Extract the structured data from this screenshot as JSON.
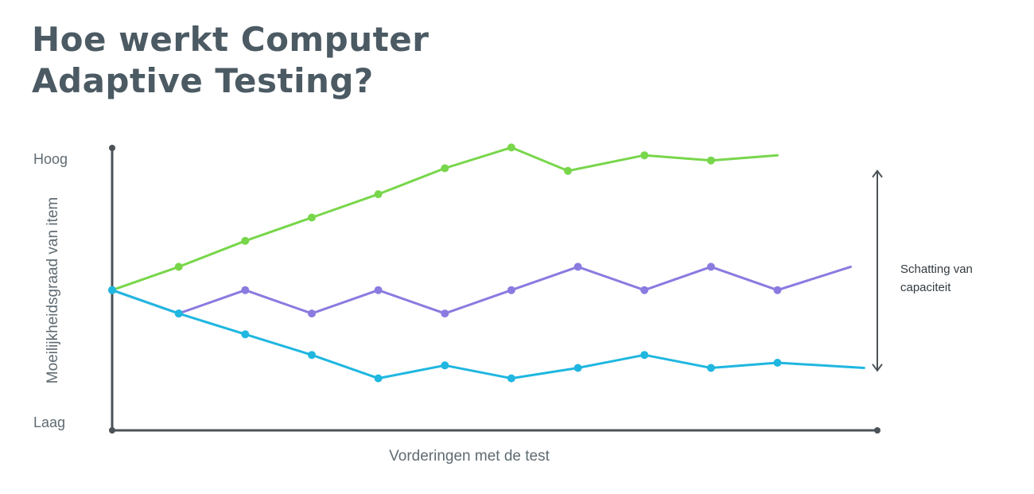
{
  "title": {
    "line1": "Hoe werkt Computer",
    "line2": "Adaptive Testing?"
  },
  "chart_data": {
    "type": "line",
    "title": "Hoe werkt Computer Adaptive Testing?",
    "xlabel": "Vorderingen met de test",
    "ylabel": "Moeilijkheidsgraad van item",
    "ytick_high": "Hoog",
    "ytick_low": "Laag",
    "xlim": [
      0,
      11.5
    ],
    "ylim": [
      0,
      1
    ],
    "grid": false,
    "legend": "none",
    "annotation": {
      "text_line1": "Schatting van",
      "text_line2": "capaciteit",
      "range": [
        0.2,
        0.97
      ],
      "x": 11.5
    },
    "series": [
      {
        "color": "#78d64b",
        "x": [
          0,
          1,
          2,
          3,
          4,
          5,
          6,
          6.85,
          8,
          9,
          10
        ],
        "y": [
          0.51,
          0.6,
          0.7,
          0.79,
          0.88,
          0.98,
          1.06,
          0.97,
          1.03,
          1.01,
          1.03
        ],
        "markers": [
          true,
          true,
          true,
          true,
          true,
          true,
          true,
          true,
          true,
          true,
          false
        ]
      },
      {
        "color": "#8a7be0",
        "x": [
          0,
          1,
          2,
          3,
          4,
          5,
          6,
          7,
          8,
          9,
          10,
          11.1
        ],
        "y": [
          0.51,
          0.42,
          0.51,
          0.42,
          0.51,
          0.42,
          0.51,
          0.6,
          0.51,
          0.6,
          0.51,
          0.6
        ],
        "markers": [
          true,
          true,
          true,
          true,
          true,
          true,
          true,
          true,
          true,
          true,
          true,
          false
        ]
      },
      {
        "color": "#1fb7e0",
        "x": [
          0,
          1,
          2,
          3,
          4,
          5,
          6,
          7,
          8,
          9,
          10,
          11.3
        ],
        "y": [
          0.51,
          0.42,
          0.34,
          0.26,
          0.17,
          0.22,
          0.17,
          0.21,
          0.26,
          0.21,
          0.23,
          0.21
        ],
        "markers": [
          true,
          true,
          true,
          true,
          true,
          true,
          true,
          true,
          true,
          true,
          true,
          false
        ]
      }
    ]
  }
}
